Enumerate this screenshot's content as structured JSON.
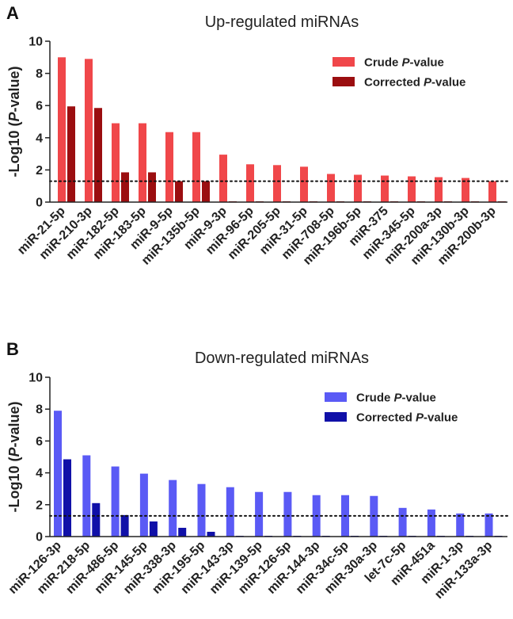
{
  "chart_data": [
    {
      "panel": "A",
      "type": "bar",
      "title": "Up-regulated miRNAs",
      "ylabel_prefix": "-Log10 (",
      "ylabel_italic": "P",
      "ylabel_suffix": "-value)",
      "ylim": [
        0,
        10
      ],
      "yticks": [
        "0",
        "2",
        "4",
        "6",
        "8",
        "10"
      ],
      "threshold": 1.3,
      "categories": [
        "miR-21-5p",
        "miR-210-3p",
        "miR-182-5p",
        "miR-183-5p",
        "miR-9-5p",
        "miR-135b-5p",
        "miR-9-3p",
        "miR-96-5p",
        "miR-205-5p",
        "miR-31-5p",
        "miR-708-5p",
        "miR-196b-5p",
        "miR-375",
        "miR-345-5p",
        "miR-200a-3p",
        "miR-130b-3p",
        "miR-200b-3p"
      ],
      "series": [
        {
          "name": "Crude P-value",
          "name_prefix": "Crude ",
          "name_italic": "P",
          "name_suffix": "-value",
          "color": "#f0474a",
          "values": [
            9.0,
            8.9,
            4.9,
            4.9,
            4.35,
            4.35,
            2.95,
            2.35,
            2.3,
            2.2,
            1.75,
            1.7,
            1.65,
            1.6,
            1.55,
            1.5,
            1.3
          ]
        },
        {
          "name": "Corrected P-value",
          "name_prefix": "Corrected ",
          "name_italic": "P",
          "name_suffix": "-value",
          "color": "#9b0e10",
          "values": [
            5.95,
            5.85,
            1.85,
            1.85,
            1.3,
            1.3,
            0.05,
            0.05,
            0.05,
            0.05,
            0.05,
            0.05,
            0.05,
            0.05,
            0.05,
            0.05,
            0.05
          ]
        }
      ]
    },
    {
      "panel": "B",
      "type": "bar",
      "title": "Down-regulated miRNAs",
      "ylabel_prefix": "-Log10 (",
      "ylabel_italic": "P",
      "ylabel_suffix": "-value)",
      "ylim": [
        0,
        10
      ],
      "yticks": [
        "0",
        "2",
        "4",
        "6",
        "8",
        "10"
      ],
      "threshold": 1.3,
      "categories": [
        "miR-126-3p",
        "miR-218-5p",
        "miR-486-5p",
        "miR-145-5p",
        "miR-338-3p",
        "miR-195-5p",
        "miR-143-3p",
        "miR-139-5p",
        "miR-126-5p",
        "miR-144-3p",
        "miR-34c-5p",
        "miR-30a-3p",
        "let-7c-5p",
        "miR-451a",
        "miR-1-3p",
        "miR-133a-3p"
      ],
      "series": [
        {
          "name": "Crude P-value",
          "name_prefix": "Crude ",
          "name_italic": "P",
          "name_suffix": "-value",
          "color": "#5a5af5",
          "values": [
            7.9,
            5.1,
            4.4,
            3.95,
            3.55,
            3.3,
            3.1,
            2.8,
            2.8,
            2.6,
            2.6,
            2.55,
            1.8,
            1.7,
            1.45,
            1.45
          ]
        },
        {
          "name": "Corrected P-value",
          "name_prefix": "Corrected ",
          "name_italic": "P",
          "name_suffix": "-value",
          "color": "#1010a8",
          "values": [
            4.85,
            2.1,
            1.35,
            0.95,
            0.55,
            0.3,
            0.05,
            0.05,
            0.05,
            0.05,
            0.05,
            0.05,
            0.05,
            0.05,
            0.05,
            0.05
          ]
        }
      ]
    }
  ]
}
